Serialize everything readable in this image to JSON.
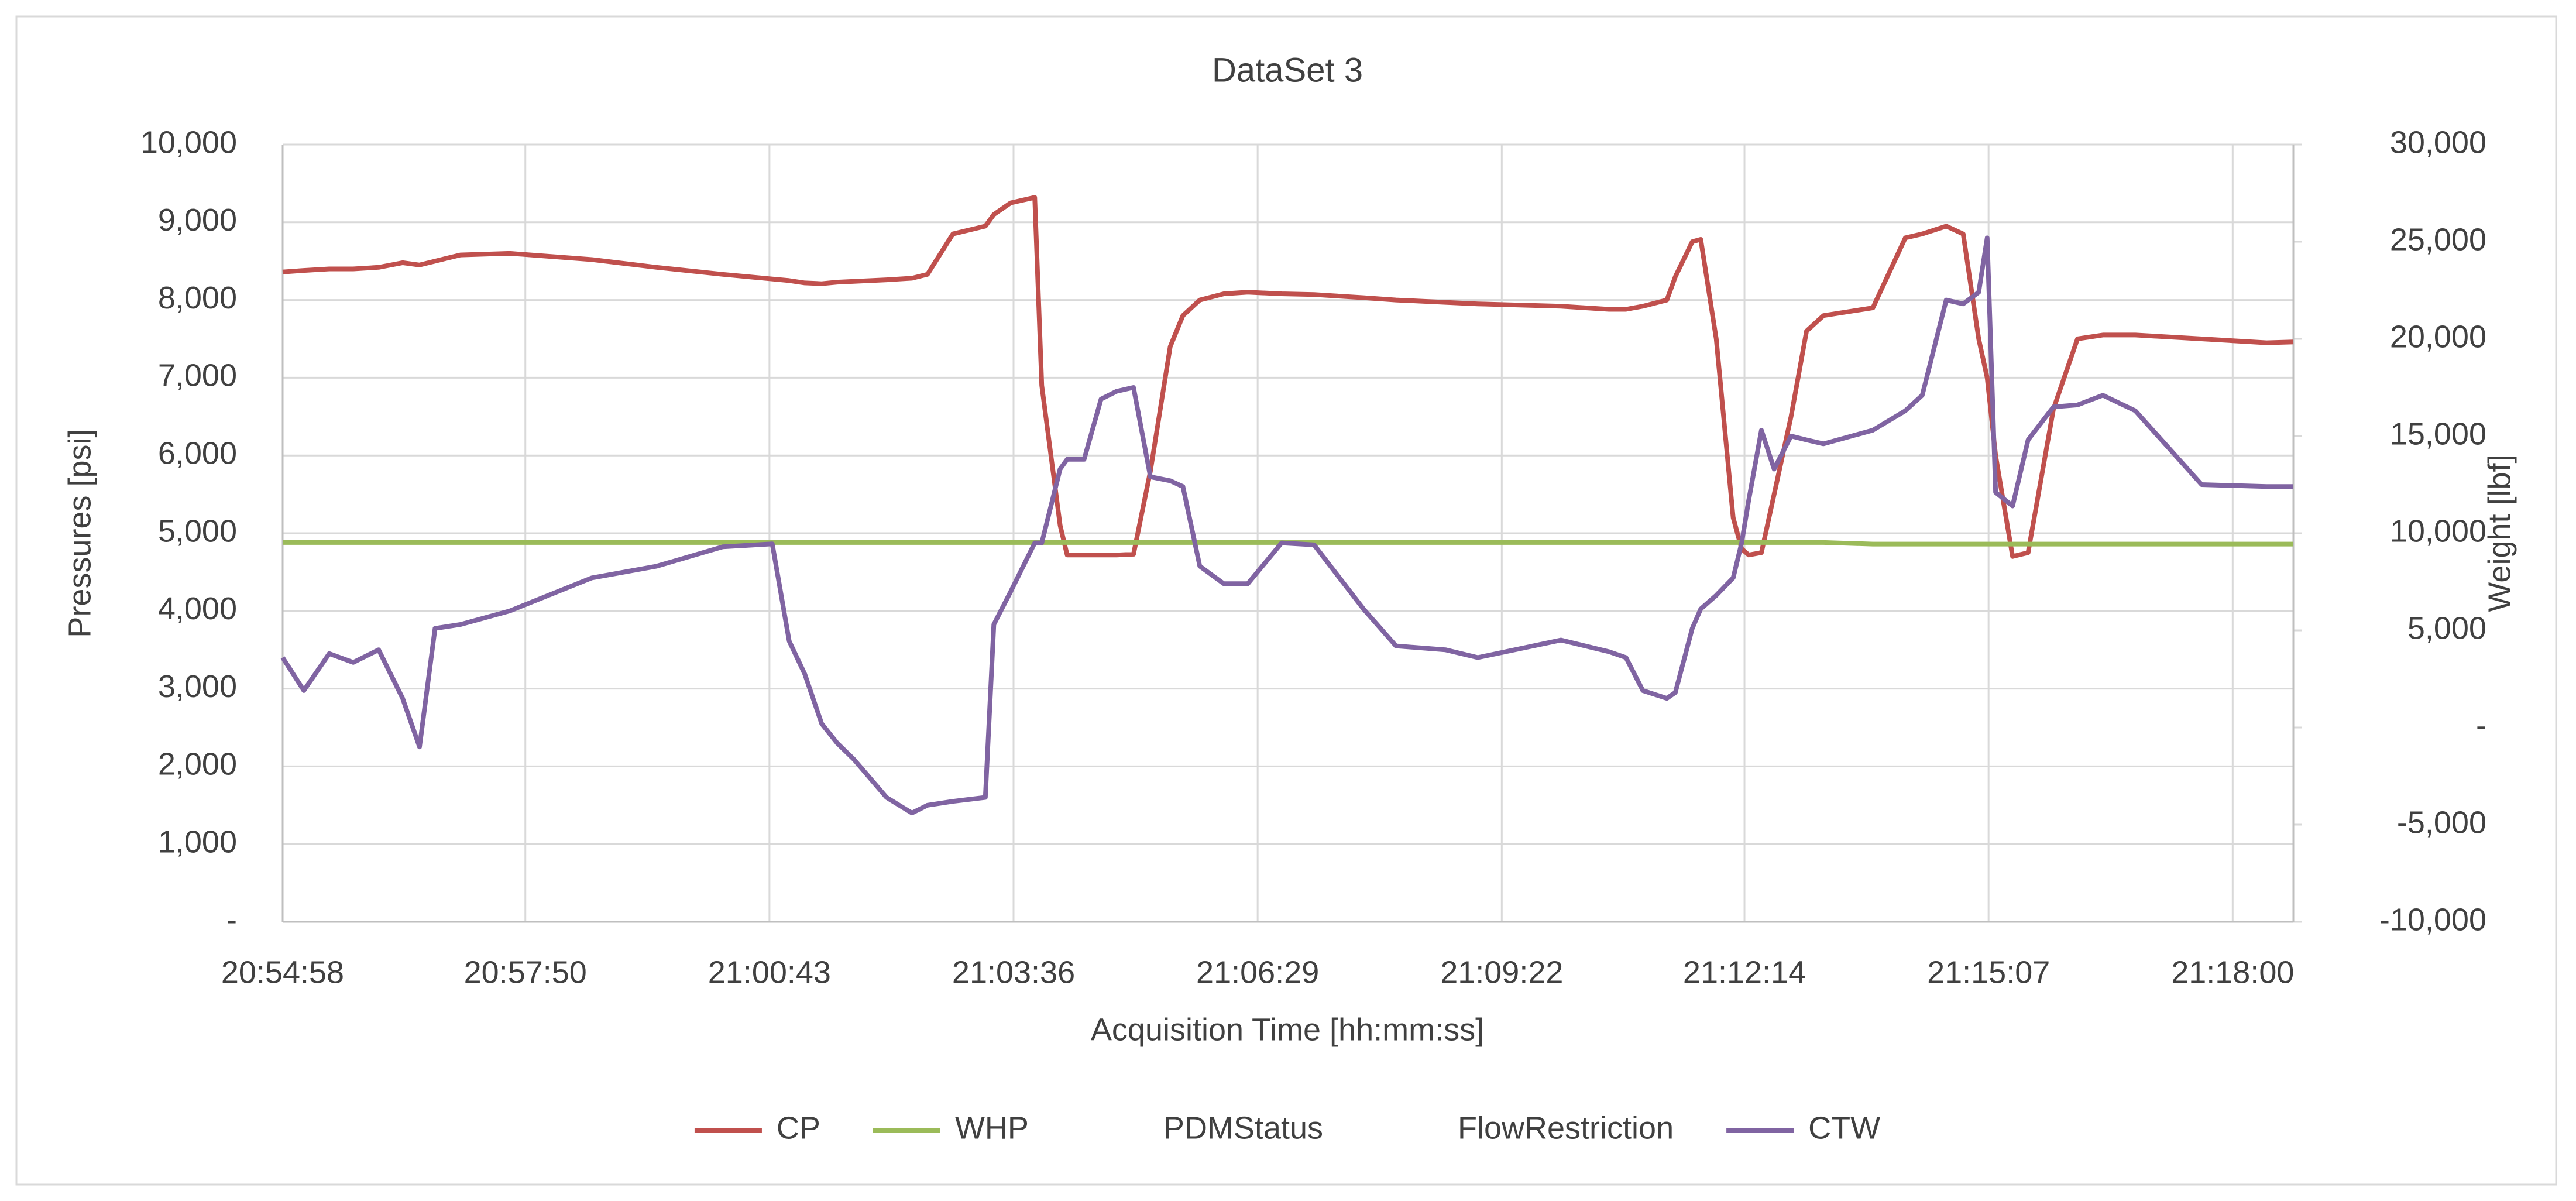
{
  "chart_data": {
    "type": "line",
    "title": "DataSet 3",
    "x_label": "Acquisition Time [hh:mm:ss]",
    "y_label": "Pressures [psi]",
    "y2_label": "Weight [lbf]",
    "x": [
      "20:54:58",
      "20:55:13",
      "20:55:31",
      "20:55:48",
      "20:56:06",
      "20:56:23",
      "20:56:35",
      "20:56:46",
      "20:57:04",
      "20:57:39",
      "20:58:37",
      "20:59:23",
      "21:00:10",
      "21:00:45",
      "21:00:57",
      "21:01:08",
      "21:01:20",
      "21:01:31",
      "21:01:43",
      "21:02:06",
      "21:02:24",
      "21:02:35",
      "21:02:53",
      "21:03:16",
      "21:03:22",
      "21:03:34",
      "21:03:51",
      "21:03:56",
      "21:04:09",
      "21:04:14",
      "21:04:26",
      "21:04:38",
      "21:04:49",
      "21:05:01",
      "21:05:13",
      "21:05:27",
      "21:05:36",
      "21:05:48",
      "21:06:05",
      "21:06:22",
      "21:06:46",
      "21:07:09",
      "21:07:44",
      "21:08:07",
      "21:08:42",
      "21:09:05",
      "21:10:04",
      "21:10:38",
      "21:10:50",
      "21:11:02",
      "21:11:19",
      "21:11:25",
      "21:11:37",
      "21:11:43",
      "21:11:54",
      "21:12:06",
      "21:12:12",
      "21:12:17",
      "21:12:26",
      "21:12:35",
      "21:12:47",
      "21:12:58",
      "21:13:10",
      "21:13:45",
      "21:14:08",
      "21:14:20",
      "21:14:37",
      "21:14:49",
      "21:15:00",
      "21:15:06",
      "21:15:12",
      "21:15:24",
      "21:15:35",
      "21:15:53",
      "21:16:10",
      "21:16:28",
      "21:16:51",
      "21:17:38",
      "21:18:24",
      "21:18:43"
    ],
    "series": [
      {
        "name": "CP",
        "color": "#c0504d",
        "values": [
          8360,
          8380,
          8400,
          8400,
          8420,
          8480,
          8450,
          8500,
          8580,
          8600,
          8520,
          8420,
          8330,
          8270,
          8250,
          8220,
          8210,
          8230,
          8240,
          8260,
          8280,
          8330,
          8850,
          8950,
          9100,
          9250,
          9320,
          6900,
          5100,
          4720,
          4720,
          4720,
          4720,
          4730,
          5800,
          7400,
          7800,
          8000,
          8080,
          8100,
          8080,
          8070,
          8030,
          8000,
          7970,
          7950,
          7920,
          7880,
          7880,
          7920,
          8000,
          8300,
          8750,
          8780,
          7500,
          5200,
          4800,
          4720,
          4750,
          5500,
          6500,
          7600,
          7800,
          7900,
          8800,
          8850,
          8950,
          8850,
          7500,
          7000,
          6000,
          4700,
          4750,
          6600,
          7500,
          7550,
          7550,
          7500,
          7450,
          7460
        ]
      },
      {
        "name": "WHP",
        "color": "#9bbb59",
        "values": [
          4880,
          4880,
          4880,
          4880,
          4880,
          4880,
          4880,
          4880,
          4880,
          4880,
          4880,
          4880,
          4880,
          4880,
          4880,
          4880,
          4880,
          4880,
          4880,
          4880,
          4880,
          4880,
          4880,
          4880,
          4880,
          4880,
          4880,
          4880,
          4880,
          4880,
          4880,
          4880,
          4880,
          4880,
          4880,
          4880,
          4880,
          4880,
          4880,
          4880,
          4880,
          4880,
          4880,
          4880,
          4880,
          4880,
          4880,
          4880,
          4880,
          4880,
          4880,
          4880,
          4880,
          4880,
          4880,
          4880,
          4880,
          4880,
          4880,
          4880,
          4880,
          4880,
          4880,
          4860,
          4860,
          4860,
          4860,
          4860,
          4860,
          4860,
          4860,
          4860,
          4860,
          4860,
          4860,
          4860,
          4860,
          4860,
          4860,
          4860
        ]
      },
      {
        "name": "PDMStatus",
        "values": [
          null,
          null,
          null,
          null,
          null,
          null,
          null,
          null,
          null,
          null,
          null,
          null,
          null,
          null,
          null,
          null,
          null,
          null,
          null,
          null,
          null,
          null,
          null,
          null,
          null,
          null,
          null,
          null,
          null,
          null,
          null,
          null,
          null,
          null,
          null,
          null,
          null,
          null,
          null,
          null,
          null,
          null,
          null,
          null,
          null,
          null,
          null,
          null,
          null,
          null,
          null,
          null,
          null,
          null,
          null,
          null,
          null,
          null,
          null,
          null,
          null,
          null,
          null,
          null,
          null,
          null,
          null,
          null,
          null,
          null,
          null,
          null,
          null,
          null,
          null,
          null,
          null,
          null,
          null,
          null
        ]
      },
      {
        "name": "FlowRestriction",
        "values": [
          null,
          null,
          null,
          null,
          null,
          null,
          null,
          null,
          null,
          null,
          null,
          null,
          null,
          null,
          null,
          null,
          null,
          null,
          null,
          null,
          null,
          null,
          null,
          null,
          null,
          null,
          null,
          null,
          null,
          null,
          null,
          null,
          null,
          null,
          null,
          null,
          null,
          null,
          null,
          null,
          null,
          null,
          null,
          null,
          null,
          null,
          null,
          null,
          null,
          null,
          null,
          null,
          null,
          null,
          null,
          null,
          null,
          null,
          null,
          null,
          null,
          null,
          null,
          null,
          null,
          null,
          null,
          null,
          null,
          null,
          null,
          null,
          null,
          null,
          null,
          null,
          null,
          null,
          null,
          null
        ]
      },
      {
        "name": "CTW",
        "color": "#8064a2",
        "axis": "y2",
        "values": [
          3600,
          1900,
          3800,
          3350,
          4000,
          1500,
          -1000,
          5100,
          5300,
          6000,
          7700,
          8300,
          9300,
          9450,
          4450,
          2750,
          200,
          -800,
          -1650,
          -3600,
          -4400,
          -4000,
          -3800,
          -3600,
          5300,
          7000,
          9500,
          9500,
          13300,
          13800,
          13800,
          16900,
          17300,
          17500,
          12900,
          12700,
          12400,
          8300,
          7400,
          7400,
          9500,
          9400,
          6100,
          4200,
          4000,
          3600,
          4500,
          3900,
          3600,
          1900,
          1500,
          1800,
          5100,
          6100,
          6800,
          7700,
          9500,
          11700,
          15300,
          13300,
          15000,
          14800,
          14600,
          15300,
          16300,
          17100,
          22000,
          21800,
          22400,
          25200,
          12100,
          11400,
          14800,
          16500,
          16600,
          17100,
          16300,
          12500,
          12400,
          12400
        ]
      }
    ],
    "xlim": [
      "20:54:58",
      "21:18:43"
    ],
    "xticks": [
      "20:54:58",
      "20:57:50",
      "21:00:43",
      "21:03:36",
      "21:06:29",
      "21:09:22",
      "21:12:14",
      "21:15:07",
      "21:18:00"
    ],
    "ylim": [
      0,
      10000
    ],
    "yticks": [
      {
        "value": 0,
        "label": "-"
      },
      {
        "value": 1000,
        "label": "1,000"
      },
      {
        "value": 2000,
        "label": "2,000"
      },
      {
        "value": 3000,
        "label": "3,000"
      },
      {
        "value": 4000,
        "label": "4,000"
      },
      {
        "value": 5000,
        "label": "5,000"
      },
      {
        "value": 6000,
        "label": "6,000"
      },
      {
        "value": 7000,
        "label": "7,000"
      },
      {
        "value": 8000,
        "label": "8,000"
      },
      {
        "value": 9000,
        "label": "9,000"
      },
      {
        "value": 10000,
        "label": "10,000"
      }
    ],
    "y2lim": [
      -10000,
      30000
    ],
    "y2ticks": [
      {
        "value": -10000,
        "label": "-10,000"
      },
      {
        "value": -5000,
        "label": "-5,000"
      },
      {
        "value": 0,
        "label": "-"
      },
      {
        "value": 5000,
        "label": "5,000"
      },
      {
        "value": 10000,
        "label": "10,000"
      },
      {
        "value": 15000,
        "label": "15,000"
      },
      {
        "value": 20000,
        "label": "20,000"
      },
      {
        "value": 25000,
        "label": "25,000"
      },
      {
        "value": 30000,
        "label": "30,000"
      }
    ],
    "grid": true,
    "legend": "bottom"
  }
}
